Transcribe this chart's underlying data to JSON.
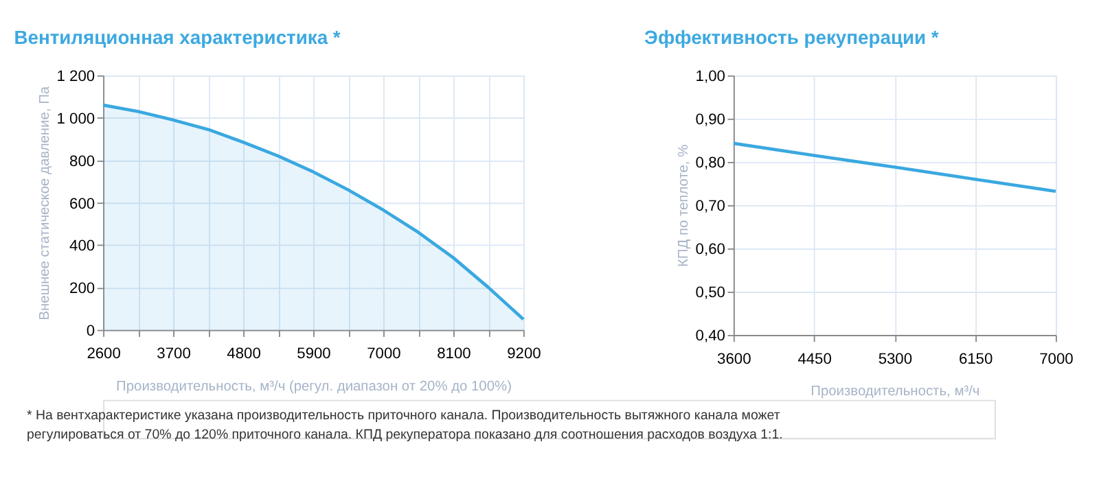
{
  "chart_data": [
    {
      "type": "area",
      "title": "Вентиляционная характеристика *",
      "xlabel": "Производительность, м³/ч (регул. диапазон от 20% до 100%)",
      "ylabel": "Внешнее статическое давление, Па",
      "x": [
        2600,
        3150,
        3700,
        4250,
        4800,
        5350,
        5900,
        6450,
        7000,
        7550,
        8100,
        8650,
        9200
      ],
      "series": [
        {
          "color": "#3aa8e0",
          "values": [
            1060,
            1030,
            990,
            945,
            885,
            820,
            745,
            660,
            565,
            460,
            340,
            200,
            50
          ]
        }
      ],
      "xlim": [
        2600,
        9200
      ],
      "xticks": [
        2600,
        {
          "value": 3150,
          "label": null
        },
        3700,
        {
          "value": 4250,
          "label": null
        },
        4800,
        {
          "value": 5350,
          "label": null
        },
        5900,
        {
          "value": 6450,
          "label": null
        },
        7000,
        {
          "value": 7550,
          "label": null
        },
        8100,
        {
          "value": 8650,
          "label": null
        },
        9200
      ],
      "ylim": [
        0,
        1200
      ],
      "yticks": [
        0,
        200,
        400,
        600,
        800,
        {
          "value": 1000,
          "label": "1 000"
        },
        {
          "value": 1200,
          "label": "1 200"
        }
      ],
      "grid": true,
      "annotations": [
        "* На вентхарактеристике указана производительность приточного канала. Производительность вытяжного канала может",
        "регулироваться от 70% до 120% приточного канала. КПД рекуператора показано для соотношения расходов воздуха 1:1."
      ]
    },
    {
      "type": "line",
      "title": "Эффективность рекуперации *",
      "xlabel": "Производительность, м³/ч",
      "ylabel": "КПД по теплоте, %",
      "x": [
        3600,
        4450,
        5300,
        6150,
        7000
      ],
      "series": [
        {
          "color": "#3aa8e0",
          "values": [
            0.843,
            0.815,
            0.788,
            0.76,
            0.732
          ]
        }
      ],
      "xlim": [
        3600,
        7000
      ],
      "xticks": [
        3600,
        4450,
        5300,
        6150,
        7000
      ],
      "ylim": [
        0.4,
        1.0
      ],
      "yticks": [
        {
          "value": 0.4,
          "label": "0,40"
        },
        {
          "value": 0.5,
          "label": "0,50"
        },
        {
          "value": 0.6,
          "label": "0,60"
        },
        {
          "value": 0.7,
          "label": "0,70"
        },
        {
          "value": 0.8,
          "label": "0,80"
        },
        {
          "value": 0.9,
          "label": "0,90"
        },
        {
          "value": 1.0,
          "label": "1,00"
        }
      ],
      "grid": true
    }
  ]
}
